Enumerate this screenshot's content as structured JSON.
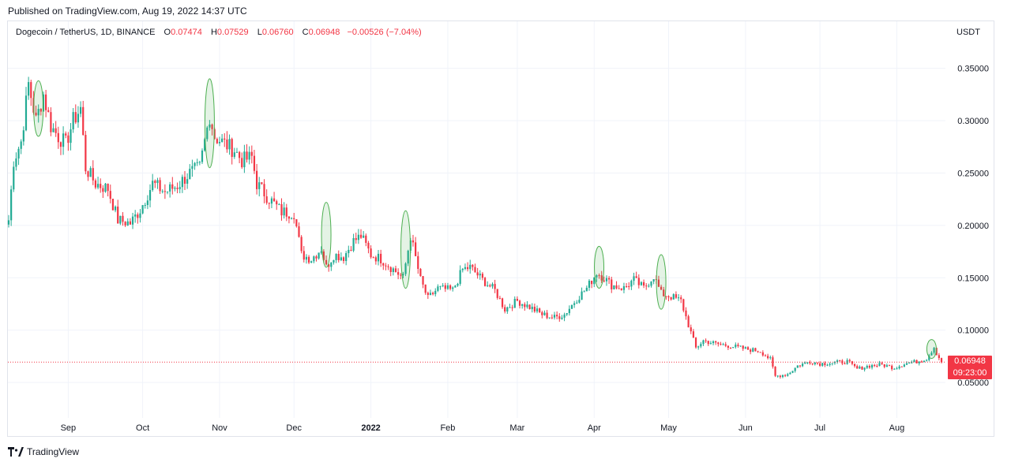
{
  "header": {
    "published": "Published on TradingView.com, Aug 19, 2022 14:37 UTC"
  },
  "legend": {
    "symbol": "Dogecoin / TetherUS, 1D, BINANCE",
    "open_label": "O",
    "open": "0.07474",
    "high_label": "H",
    "high": "0.07529",
    "low_label": "L",
    "low": "0.06760",
    "close_label": "C",
    "close": "0.06948",
    "change": "−0.00526 (−7.04%)"
  },
  "axis_unit": "USDT",
  "price_tag": {
    "price": "0.06948",
    "countdown": "09:23:00"
  },
  "footer": {
    "brand": "TradingView"
  },
  "colors": {
    "up": "#22ab94",
    "down": "#f23645",
    "highlight": "#4caf50",
    "grid": "#f0f3fa"
  },
  "chart_data": {
    "type": "candlestick",
    "title": "Dogecoin / TetherUS, 1D, BINANCE",
    "xlabel": "",
    "ylabel": "USDT",
    "ylim": [
      0.02,
      0.37
    ],
    "yticks": [
      "0.35000",
      "0.30000",
      "0.25000",
      "0.20000",
      "0.15000",
      "0.10000",
      "0.05000"
    ],
    "ytick_values": [
      0.35,
      0.3,
      0.25,
      0.2,
      0.15,
      0.1,
      0.05
    ],
    "xticks": [
      "Sep",
      "Oct",
      "Nov",
      "Dec",
      "2022",
      "Feb",
      "Mar",
      "Apr",
      "May",
      "Jun",
      "Jul",
      "Aug"
    ],
    "xtick_dates": [
      "2021-09-01",
      "2021-10-01",
      "2021-11-01",
      "2021-12-01",
      "2022-01-01",
      "2022-02-01",
      "2022-03-01",
      "2022-04-01",
      "2022-05-01",
      "2022-06-01",
      "2022-07-01",
      "2022-08-01"
    ],
    "date_range": [
      "2021-08-08",
      "2022-08-19"
    ],
    "last_close": 0.06948,
    "grid": true,
    "close_path": [
      [
        "2021-08-08",
        0.205
      ],
      [
        "2021-08-10",
        0.262
      ],
      [
        "2021-08-13",
        0.28
      ],
      [
        "2021-08-16",
        0.335
      ],
      [
        "2021-08-19",
        0.3
      ],
      [
        "2021-08-22",
        0.325
      ],
      [
        "2021-08-25",
        0.295
      ],
      [
        "2021-08-28",
        0.285
      ],
      [
        "2021-08-31",
        0.278
      ],
      [
        "2021-09-03",
        0.3
      ],
      [
        "2021-09-06",
        0.312
      ],
      [
        "2021-09-08",
        0.255
      ],
      [
        "2021-09-12",
        0.24
      ],
      [
        "2021-09-17",
        0.235
      ],
      [
        "2021-09-21",
        0.205
      ],
      [
        "2021-09-26",
        0.202
      ],
      [
        "2021-09-30",
        0.215
      ],
      [
        "2021-10-05",
        0.24
      ],
      [
        "2021-10-10",
        0.232
      ],
      [
        "2021-10-15",
        0.238
      ],
      [
        "2021-10-20",
        0.25
      ],
      [
        "2021-10-24",
        0.255
      ],
      [
        "2021-10-28",
        0.305
      ],
      [
        "2021-10-30",
        0.285
      ],
      [
        "2021-11-03",
        0.278
      ],
      [
        "2021-11-07",
        0.272
      ],
      [
        "2021-11-10",
        0.262
      ],
      [
        "2021-11-14",
        0.265
      ],
      [
        "2021-11-16",
        0.24
      ],
      [
        "2021-11-20",
        0.228
      ],
      [
        "2021-11-26",
        0.213
      ],
      [
        "2021-12-01",
        0.212
      ],
      [
        "2021-12-04",
        0.172
      ],
      [
        "2021-12-08",
        0.168
      ],
      [
        "2021-12-12",
        0.178
      ],
      [
        "2021-12-14",
        0.16
      ],
      [
        "2021-12-17",
        0.172
      ],
      [
        "2021-12-21",
        0.17
      ],
      [
        "2021-12-25",
        0.185
      ],
      [
        "2021-12-28",
        0.19
      ],
      [
        "2022-01-01",
        0.172
      ],
      [
        "2022-01-05",
        0.168
      ],
      [
        "2022-01-10",
        0.158
      ],
      [
        "2022-01-14",
        0.15
      ],
      [
        "2022-01-17",
        0.19
      ],
      [
        "2022-01-21",
        0.148
      ],
      [
        "2022-01-24",
        0.13
      ],
      [
        "2022-01-28",
        0.14
      ],
      [
        "2022-02-03",
        0.138
      ],
      [
        "2022-02-07",
        0.158
      ],
      [
        "2022-02-10",
        0.16
      ],
      [
        "2022-02-15",
        0.148
      ],
      [
        "2022-02-20",
        0.138
      ],
      [
        "2022-02-24",
        0.12
      ],
      [
        "2022-03-01",
        0.128
      ],
      [
        "2022-03-06",
        0.122
      ],
      [
        "2022-03-11",
        0.115
      ],
      [
        "2022-03-16",
        0.112
      ],
      [
        "2022-03-20",
        0.115
      ],
      [
        "2022-03-25",
        0.13
      ],
      [
        "2022-03-29",
        0.14
      ],
      [
        "2022-04-02",
        0.155
      ],
      [
        "2022-04-05",
        0.15
      ],
      [
        "2022-04-08",
        0.143
      ],
      [
        "2022-04-13",
        0.14
      ],
      [
        "2022-04-17",
        0.148
      ],
      [
        "2022-04-21",
        0.14
      ],
      [
        "2022-04-25",
        0.152
      ],
      [
        "2022-04-28",
        0.135
      ],
      [
        "2022-05-02",
        0.132
      ],
      [
        "2022-05-06",
        0.128
      ],
      [
        "2022-05-09",
        0.105
      ],
      [
        "2022-05-12",
        0.083
      ],
      [
        "2022-05-15",
        0.09
      ],
      [
        "2022-05-20",
        0.087
      ],
      [
        "2022-05-26",
        0.085
      ],
      [
        "2022-06-01",
        0.082
      ],
      [
        "2022-06-07",
        0.08
      ],
      [
        "2022-06-11",
        0.072
      ],
      [
        "2022-06-13",
        0.056
      ],
      [
        "2022-06-18",
        0.058
      ],
      [
        "2022-06-22",
        0.066
      ],
      [
        "2022-06-27",
        0.07
      ],
      [
        "2022-07-01",
        0.068
      ],
      [
        "2022-07-07",
        0.069
      ],
      [
        "2022-07-12",
        0.07
      ],
      [
        "2022-07-16",
        0.063
      ],
      [
        "2022-07-21",
        0.066
      ],
      [
        "2022-07-26",
        0.067
      ],
      [
        "2022-07-31",
        0.064
      ],
      [
        "2022-08-04",
        0.068
      ],
      [
        "2022-08-09",
        0.07
      ],
      [
        "2022-08-13",
        0.073
      ],
      [
        "2022-08-16",
        0.084
      ],
      [
        "2022-08-17",
        0.078
      ],
      [
        "2022-08-19",
        0.0695
      ]
    ],
    "highlighted_spikes": [
      {
        "date": "2021-08-20",
        "low": 0.285,
        "high": 0.338
      },
      {
        "date": "2021-10-28",
        "low": 0.255,
        "high": 0.34
      },
      {
        "date": "2021-12-14",
        "low": 0.16,
        "high": 0.222
      },
      {
        "date": "2022-01-15",
        "low": 0.14,
        "high": 0.214
      },
      {
        "date": "2022-04-03",
        "low": 0.14,
        "high": 0.18
      },
      {
        "date": "2022-04-28",
        "low": 0.12,
        "high": 0.172
      },
      {
        "date": "2022-08-15",
        "low": 0.073,
        "high": 0.091
      }
    ]
  }
}
